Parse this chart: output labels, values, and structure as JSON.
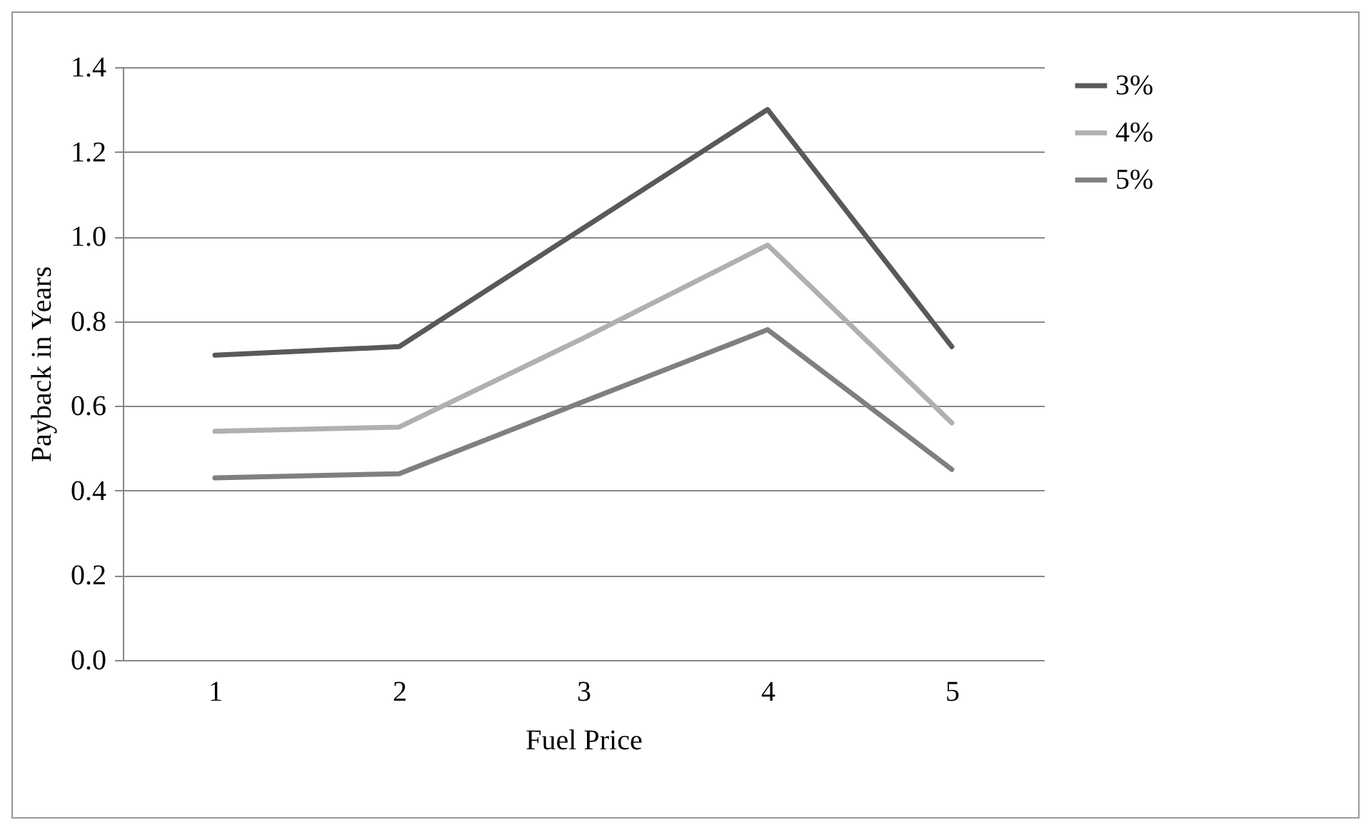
{
  "chart_data": {
    "type": "line",
    "xlabel": "Fuel Price",
    "ylabel": "Payback in Years",
    "categories": [
      "1",
      "2",
      "3",
      "4",
      "5"
    ],
    "series": [
      {
        "name": "3%",
        "color": "#595959",
        "values": [
          0.72,
          0.74,
          1.02,
          1.3,
          0.74
        ]
      },
      {
        "name": "4%",
        "color": "#b0b0b0",
        "values": [
          0.54,
          0.55,
          0.76,
          0.98,
          0.56
        ]
      },
      {
        "name": "5%",
        "color": "#7f7f7f",
        "values": [
          0.43,
          0.44,
          0.61,
          0.78,
          0.45
        ]
      }
    ],
    "ylim": [
      0,
      1.4
    ],
    "yticks": [
      {
        "value": 0,
        "label": "0.0"
      },
      {
        "value": 0.2,
        "label": "0.2"
      },
      {
        "value": 0.4,
        "label": "0.4"
      },
      {
        "value": 0.6,
        "label": "0.6"
      },
      {
        "value": 0.8,
        "label": "0.8"
      },
      {
        "value": 1,
        "label": "1.0"
      },
      {
        "value": 1.2,
        "label": "1.2"
      },
      {
        "value": 1.4,
        "label": "1.4"
      }
    ],
    "grid": "y",
    "legend": "right",
    "marker": "none",
    "line_style": "solid"
  }
}
